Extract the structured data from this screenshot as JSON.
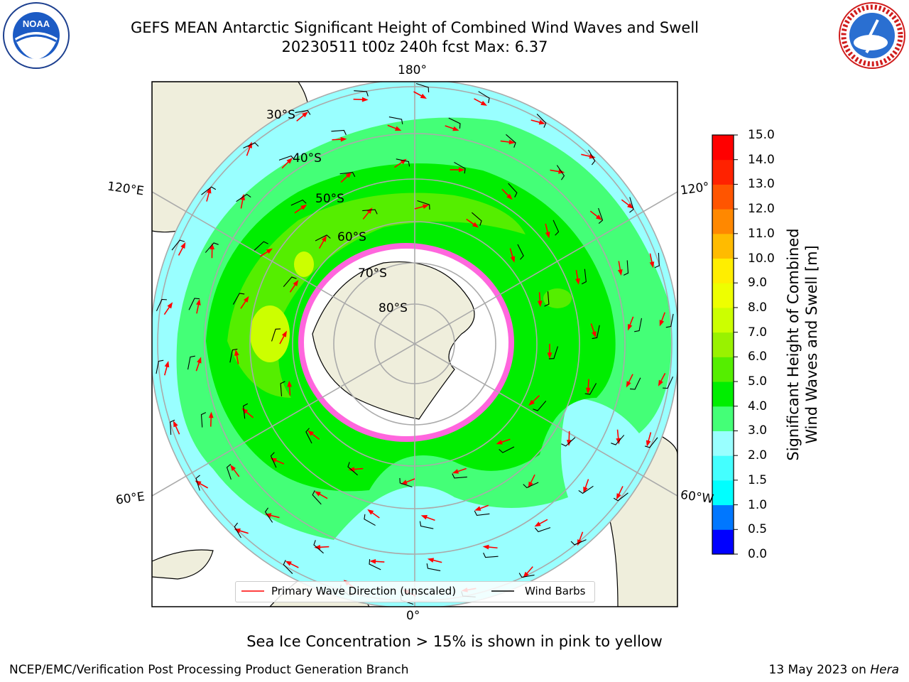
{
  "title_line1": "GEFS MEAN Antarctic Significant Height of Combined Wind Waves and Swell",
  "title_line2": "20230511 t00z 240h fcst   Max: 6.37",
  "logos": {
    "left": "NOAA",
    "left_ring_text": "NATIONAL OCEANIC AND ATMOSPHERIC ADMINISTRATION · U.S. DEPARTMENT OF COMMERCE",
    "right_ring_text": "NATIONAL WEATHER SERVICE"
  },
  "map": {
    "projection": "south polar stereographic",
    "longitude_labels": {
      "top": "180°",
      "bottom": "0°",
      "left_upper": "120°E",
      "left_lower": "60°E",
      "right_upper": "120°",
      "right_lower": "60°W"
    },
    "latitude_labels": [
      "30°S",
      "40°S",
      "50°S",
      "60°S",
      "70°S",
      "80°S"
    ]
  },
  "colorbar": {
    "title_line1": "Significant Height of Combined",
    "title_line2": "Wind Waves and Swell [m]",
    "ticks": [
      "0.0",
      "0.5",
      "1.0",
      "1.5",
      "2.0",
      "3.0",
      "4.0",
      "5.0",
      "6.0",
      "7.0",
      "8.0",
      "9.0",
      "10.0",
      "11.0",
      "12.0",
      "13.0",
      "14.0",
      "15.0"
    ],
    "colors": [
      "#0000ff",
      "#0077ff",
      "#00ffff",
      "#44ffff",
      "#99ffff",
      "#44ff77",
      "#00ee00",
      "#55ee00",
      "#99f200",
      "#ccff00",
      "#eeff00",
      "#ffee00",
      "#ffbb00",
      "#ff8800",
      "#ff5500",
      "#ff2200",
      "#ff0000"
    ]
  },
  "legend": {
    "wave_label": "Primary Wave Direction (unscaled)",
    "wind_label": "Wind Barbs",
    "wave_color": "#ff0000",
    "wind_color": "#000000"
  },
  "note": "Sea Ice Concentration > 15% is shown in pink to yellow",
  "footer_left": "NCEP/EMC/Verification Post Processing Product Generation Branch",
  "footer_date": "13 May 2023 on",
  "footer_machine": "Hera"
}
